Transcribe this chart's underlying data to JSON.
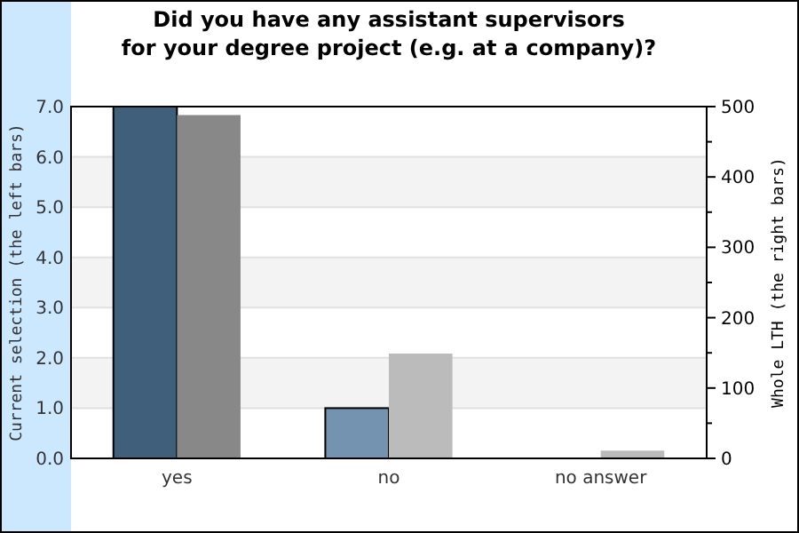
{
  "chart_data": {
    "type": "bar",
    "title": "Did you have any assistant supervisors\nfor your degree project (e.g. at a company)?",
    "categories": [
      "yes",
      "no",
      "no answer"
    ],
    "ylabel": "Current selection (the left bars)",
    "y2label": "Whole LTH (the right bars)",
    "ylim": [
      0,
      7
    ],
    "yticks": [
      {
        "value": 0,
        "label": "0.0"
      },
      {
        "value": 1,
        "label": "1.0"
      },
      {
        "value": 2,
        "label": "2.0"
      },
      {
        "value": 3,
        "label": "3.0"
      },
      {
        "value": 4,
        "label": "4.0"
      },
      {
        "value": 5,
        "label": "5.0"
      },
      {
        "value": 6,
        "label": "6.0"
      },
      {
        "value": 7,
        "label": "7.0"
      }
    ],
    "y2lim": [
      0,
      500
    ],
    "y2ticks": [
      0,
      {
        "value": 50,
        "label": null
      },
      100,
      {
        "value": 150,
        "label": null
      },
      200,
      {
        "value": 250,
        "label": null
      },
      300,
      {
        "value": 350,
        "label": null
      },
      400,
      {
        "value": 450,
        "label": null
      },
      500
    ],
    "grid": "y",
    "series": [
      {
        "colors": [
          "#3f5f7a",
          "#7393b0",
          "#7393b0"
        ],
        "values": [
          7,
          1,
          0
        ]
      },
      {
        "colors": [
          "#888888",
          "#bbbbbb",
          "#bbbbbb"
        ],
        "values": [
          488,
          149,
          11
        ],
        "axis": "y2"
      }
    ]
  }
}
